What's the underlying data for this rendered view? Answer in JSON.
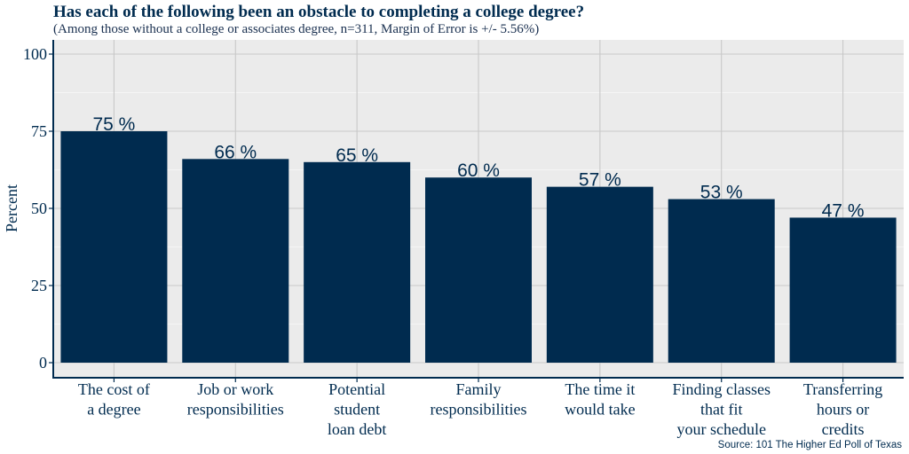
{
  "title": "Has each of the following been an obstacle to completing a college degree?",
  "subtitle": "(Among those without a college or associates degree, n=311, Margin of Error is +/- 5.56%)",
  "source": "Source: 101 The Higher Ed Poll of Texas",
  "colors": {
    "bar": "#002b4f",
    "panel": "#ebebeb",
    "grid": "#c8c8c8",
    "axis": "#002b4f"
  },
  "chart_data": {
    "type": "bar",
    "categories": [
      [
        "The cost of",
        "a degree"
      ],
      [
        "Job or work",
        "responsibilities"
      ],
      [
        "Potential",
        "student",
        "loan debt"
      ],
      [
        "Family",
        "responsibilities"
      ],
      [
        "The time it",
        "would take"
      ],
      [
        "Finding classes",
        "that fit",
        "your schedule"
      ],
      [
        "Transferring",
        "hours or",
        "credits"
      ]
    ],
    "values": [
      75,
      66,
      65,
      60,
      57,
      53,
      47
    ],
    "data_labels": [
      "75 %",
      "66 %",
      "65 %",
      "60 %",
      "57 %",
      "53 %",
      "47 %"
    ],
    "ylabel": "Percent",
    "xlabel": "",
    "ylim": [
      0,
      100
    ],
    "yticks": [
      0,
      25,
      50,
      75,
      100
    ],
    "grid": true
  }
}
